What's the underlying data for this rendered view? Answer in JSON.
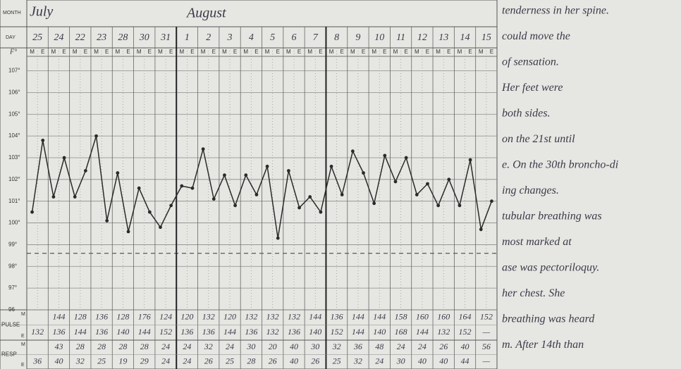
{
  "chart_data": {
    "type": "line",
    "row_labels": {
      "month": "MONTH",
      "day": "DAY"
    },
    "y_unit": "F°",
    "months": [
      "July",
      "August"
    ],
    "days": [
      "25",
      "24",
      "22",
      "23",
      "28",
      "30",
      "31",
      "1",
      "2",
      "3",
      "4",
      "5",
      "6",
      "7",
      "8",
      "9",
      "10",
      "11",
      "12",
      "13",
      "14",
      "15"
    ],
    "categories": [
      "M",
      "E",
      "M",
      "E",
      "M",
      "E",
      "M",
      "E",
      "M",
      "E",
      "M",
      "E",
      "M",
      "E",
      "M",
      "E",
      "M",
      "E",
      "M",
      "E",
      "M",
      "E",
      "M",
      "E",
      "M",
      "E",
      "M",
      "E",
      "M",
      "E",
      "M",
      "E",
      "M",
      "E",
      "M",
      "E",
      "M",
      "E",
      "M",
      "E",
      "M",
      "E",
      "M",
      "E"
    ],
    "values": [
      100.5,
      103.8,
      101.2,
      103.0,
      101.2,
      102.4,
      104.0,
      100.1,
      102.3,
      99.6,
      101.6,
      100.5,
      99.8,
      100.8,
      101.7,
      101.6,
      103.4,
      101.1,
      102.2,
      100.8,
      102.2,
      101.3,
      102.6,
      99.3,
      102.4,
      100.7,
      101.2,
      100.5,
      102.6,
      101.3,
      103.3,
      102.3,
      100.9,
      103.1,
      101.9,
      103.0,
      101.3,
      101.8,
      100.8,
      102.0,
      100.8,
      102.9,
      99.7,
      101.0
    ],
    "color": "#2a2a2a",
    "normal_line": 98.6,
    "ylim": [
      96,
      107.6
    ],
    "yticks": [
      {
        "value": 96,
        "label": "96"
      },
      {
        "value": 97,
        "label": "97°"
      },
      {
        "value": 98,
        "label": "98°"
      },
      {
        "value": 99,
        "label": "99°"
      },
      {
        "value": 100,
        "label": "100°"
      },
      {
        "value": 101,
        "label": "101°"
      },
      {
        "value": 102,
        "label": "102°"
      },
      {
        "value": 103,
        "label": "103°"
      },
      {
        "value": 104,
        "label": "104°"
      },
      {
        "value": 105,
        "label": "105°"
      },
      {
        "value": 106,
        "label": "106°"
      },
      {
        "value": 107,
        "label": "107°"
      }
    ],
    "grid": true
  },
  "table": {
    "pulse": {
      "label": "PULSE",
      "M": [
        null,
        "144",
        "128",
        "136",
        "128",
        "176",
        "124",
        "120",
        "132",
        "120",
        "132",
        "132",
        "132",
        "144",
        "136",
        "144",
        "144",
        "158",
        "160",
        "160",
        "164",
        "152"
      ],
      "E": [
        "132",
        "136",
        "144",
        "136",
        "140",
        "144",
        "152",
        "136",
        "136",
        "144",
        "136",
        "132",
        "136",
        "140",
        "152",
        "144",
        "140",
        "168",
        "144",
        "132",
        "152",
        "—"
      ]
    },
    "resp": {
      "label": "RESP",
      "M": [
        null,
        "43",
        "28",
        "28",
        "28",
        "28",
        "24",
        "24",
        "32",
        "24",
        "30",
        "20",
        "40",
        "30",
        "32",
        "36",
        "48",
        "24",
        "24",
        "26",
        "40",
        "56"
      ],
      "E": [
        "36",
        "40",
        "32",
        "25",
        "19",
        "29",
        "24",
        "24",
        "26",
        "25",
        "28",
        "26",
        "40",
        "26",
        "25",
        "32",
        "24",
        "30",
        "40",
        "40",
        "44",
        "—"
      ]
    }
  },
  "notes": [
    "tenderness in her spine.",
    "could move the",
    "of sensation.",
    "Her feet were",
    "both sides.",
    "on the 21st until",
    "e. On the 30th broncho-di",
    "ing changes.",
    "tubular breathing was",
    "most marked at",
    "ase was pectoriloquy.",
    "her chest. She",
    "breathing was heard",
    "m. After 14th than"
  ]
}
